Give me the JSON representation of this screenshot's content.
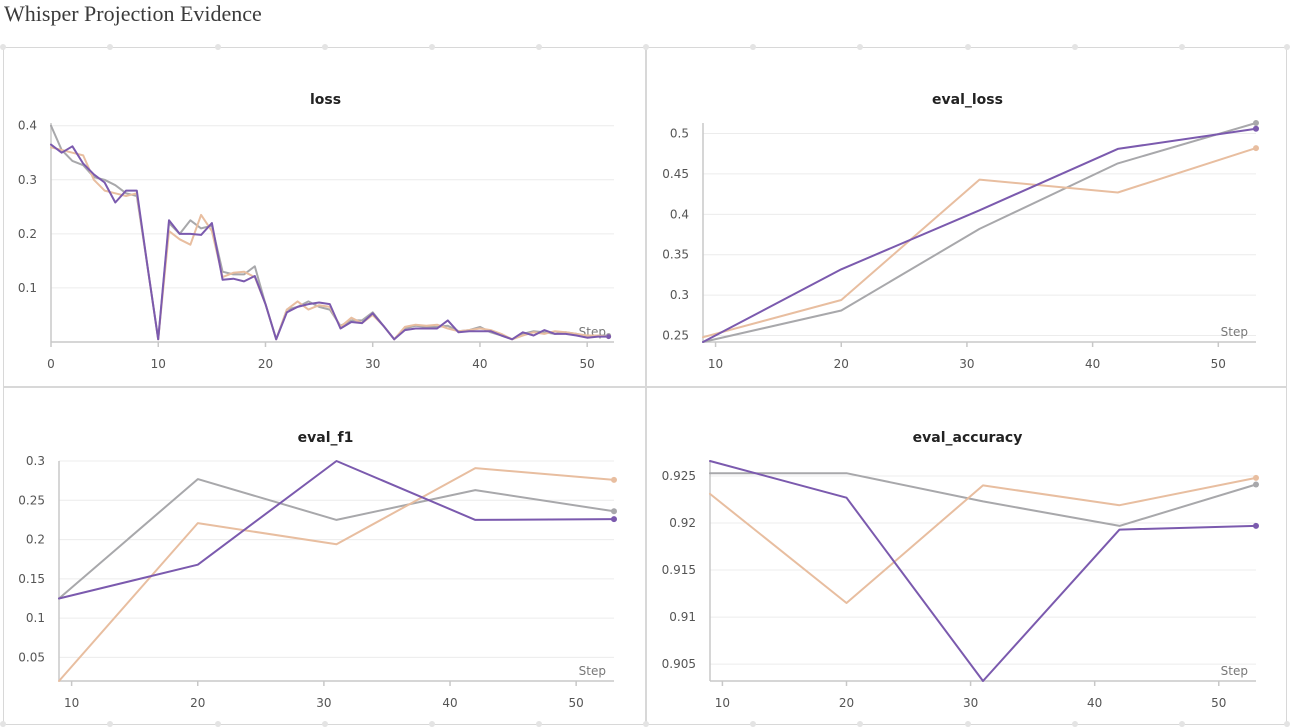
{
  "page": {
    "title": "Whisper Projection Evidence"
  },
  "colors": {
    "run_purple": "#7b5aae",
    "run_orange": "#e8bea0",
    "run_gray": "#a8a8ab",
    "grid": "#ececec",
    "axis": "#c8c8c8",
    "border": "#d8d8d8"
  },
  "chart_data": [
    {
      "id": "loss",
      "type": "line",
      "title": "loss",
      "xlabel": "Step",
      "ylabel": "",
      "xlim": [
        0,
        52.5
      ],
      "ylim": [
        0,
        0.405
      ],
      "xticks": [
        0,
        10,
        20,
        30,
        40,
        50
      ],
      "yticks": [
        0.1,
        0.2,
        0.3,
        0.4
      ],
      "grid": true,
      "series": [
        {
          "color": "#a8a8ab",
          "x": [
            0,
            1,
            2,
            3,
            4,
            5,
            6,
            7,
            8,
            9,
            10,
            11,
            12,
            13,
            14,
            15,
            16,
            17,
            18,
            19,
            20,
            21,
            22,
            23,
            24,
            25,
            26,
            27,
            28,
            29,
            30,
            31,
            32,
            33,
            34,
            35,
            36,
            37,
            38,
            39,
            40,
            41,
            42,
            43,
            44,
            45,
            46,
            47,
            48,
            49,
            50,
            51,
            52
          ],
          "values": [
            0.4,
            0.355,
            0.335,
            0.327,
            0.305,
            0.3,
            0.29,
            0.275,
            0.27,
            0.14,
            0.005,
            0.22,
            0.2,
            0.225,
            0.21,
            0.215,
            0.13,
            0.125,
            0.125,
            0.14,
            0.07,
            0.005,
            0.06,
            0.065,
            0.075,
            0.065,
            0.06,
            0.03,
            0.04,
            0.04,
            0.055,
            0.03,
            0.005,
            0.025,
            0.03,
            0.028,
            0.028,
            0.03,
            0.02,
            0.022,
            0.028,
            0.018,
            0.012,
            0.005,
            0.015,
            0.02,
            0.018,
            0.015,
            0.018,
            0.015,
            0.01,
            0.012,
            0.012
          ]
        },
        {
          "color": "#e8bea0",
          "x": [
            0,
            1,
            2,
            3,
            4,
            5,
            6,
            7,
            8,
            9,
            10,
            11,
            12,
            13,
            14,
            15,
            16,
            17,
            18,
            19,
            20,
            21,
            22,
            23,
            24,
            25,
            26,
            27,
            28,
            29,
            30,
            31,
            32,
            33,
            34,
            35,
            36,
            37,
            38,
            39,
            40,
            41,
            42,
            43,
            44,
            45,
            46,
            47,
            48,
            49,
            50,
            51,
            52
          ],
          "values": [
            0.36,
            0.355,
            0.35,
            0.345,
            0.3,
            0.28,
            0.275,
            0.27,
            0.275,
            0.14,
            0.005,
            0.205,
            0.19,
            0.18,
            0.235,
            0.205,
            0.12,
            0.128,
            0.13,
            0.12,
            0.07,
            0.005,
            0.06,
            0.075,
            0.06,
            0.068,
            0.065,
            0.028,
            0.045,
            0.035,
            0.05,
            0.03,
            0.005,
            0.028,
            0.032,
            0.03,
            0.032,
            0.025,
            0.02,
            0.022,
            0.025,
            0.022,
            0.015,
            0.005,
            0.012,
            0.018,
            0.015,
            0.02,
            0.018,
            0.015,
            0.012,
            0.012,
            0.01
          ]
        },
        {
          "color": "#7b5aae",
          "x": [
            0,
            1,
            2,
            3,
            4,
            5,
            6,
            7,
            8,
            9,
            10,
            11,
            12,
            13,
            14,
            15,
            16,
            17,
            18,
            19,
            20,
            21,
            22,
            23,
            24,
            25,
            26,
            27,
            28,
            29,
            30,
            31,
            32,
            33,
            34,
            35,
            36,
            37,
            38,
            39,
            40,
            41,
            42,
            43,
            44,
            45,
            46,
            47,
            48,
            49,
            50,
            51,
            52
          ],
          "values": [
            0.365,
            0.35,
            0.362,
            0.33,
            0.31,
            0.295,
            0.258,
            0.28,
            0.28,
            0.14,
            0.005,
            0.225,
            0.2,
            0.2,
            0.198,
            0.22,
            0.115,
            0.117,
            0.112,
            0.122,
            0.07,
            0.005,
            0.055,
            0.065,
            0.07,
            0.073,
            0.07,
            0.025,
            0.037,
            0.035,
            0.053,
            0.03,
            0.005,
            0.022,
            0.025,
            0.025,
            0.025,
            0.04,
            0.018,
            0.02,
            0.02,
            0.02,
            0.012,
            0.005,
            0.018,
            0.012,
            0.022,
            0.015,
            0.015,
            0.012,
            0.008,
            0.01,
            0.01
          ]
        }
      ]
    },
    {
      "id": "eval_loss",
      "type": "line",
      "title": "eval_loss",
      "xlabel": "Step",
      "ylabel": "",
      "xlim": [
        9,
        53
      ],
      "ylim": [
        0.242,
        0.513
      ],
      "xticks": [
        10,
        20,
        30,
        40,
        50
      ],
      "yticks": [
        0.25,
        0.3,
        0.35,
        0.4,
        0.45,
        0.5
      ],
      "grid": true,
      "series": [
        {
          "color": "#a8a8ab",
          "x": [
            9,
            20,
            31,
            42,
            53
          ],
          "values": [
            0.242,
            0.281,
            0.382,
            0.463,
            0.513
          ]
        },
        {
          "color": "#e8bea0",
          "x": [
            9,
            20,
            31,
            42,
            53
          ],
          "values": [
            0.248,
            0.294,
            0.443,
            0.427,
            0.482
          ]
        },
        {
          "color": "#7b5aae",
          "x": [
            9,
            20,
            31,
            42,
            53
          ],
          "values": [
            0.242,
            0.332,
            0.405,
            0.481,
            0.506
          ]
        }
      ]
    },
    {
      "id": "eval_f1",
      "type": "line",
      "title": "eval_f1",
      "xlabel": "Step",
      "ylabel": "",
      "xlim": [
        9,
        53
      ],
      "ylim": [
        0.02,
        0.3
      ],
      "xticks": [
        10,
        20,
        30,
        40,
        50
      ],
      "yticks": [
        0.05,
        0.1,
        0.15,
        0.2,
        0.25,
        0.3
      ],
      "grid": true,
      "series": [
        {
          "color": "#a8a8ab",
          "x": [
            9,
            20,
            31,
            42,
            53
          ],
          "values": [
            0.125,
            0.277,
            0.225,
            0.263,
            0.236
          ]
        },
        {
          "color": "#e8bea0",
          "x": [
            9,
            20,
            31,
            42,
            53
          ],
          "values": [
            0.02,
            0.221,
            0.194,
            0.291,
            0.276
          ]
        },
        {
          "color": "#7b5aae",
          "x": [
            9,
            20,
            31,
            42,
            53
          ],
          "values": [
            0.125,
            0.168,
            0.3,
            0.225,
            0.226
          ]
        }
      ]
    },
    {
      "id": "eval_accuracy",
      "type": "line",
      "title": "eval_accuracy",
      "xlabel": "Step",
      "ylabel": "",
      "xlim": [
        9,
        53
      ],
      "ylim": [
        0.9032,
        0.9266
      ],
      "xticks": [
        10,
        20,
        30,
        40,
        50
      ],
      "yticks": [
        0.905,
        0.91,
        0.915,
        0.92,
        0.925
      ],
      "grid": true,
      "series": [
        {
          "color": "#a8a8ab",
          "x": [
            9,
            20,
            31,
            42,
            53
          ],
          "values": [
            0.9253,
            0.9253,
            0.9223,
            0.9197,
            0.9241
          ]
        },
        {
          "color": "#e8bea0",
          "x": [
            9,
            20,
            31,
            42,
            53
          ],
          "values": [
            0.9231,
            0.9115,
            0.924,
            0.9219,
            0.9248
          ]
        },
        {
          "color": "#7b5aae",
          "x": [
            9,
            20,
            31,
            42,
            53
          ],
          "values": [
            0.9266,
            0.9227,
            0.9032,
            0.9193,
            0.9197
          ]
        }
      ]
    }
  ]
}
